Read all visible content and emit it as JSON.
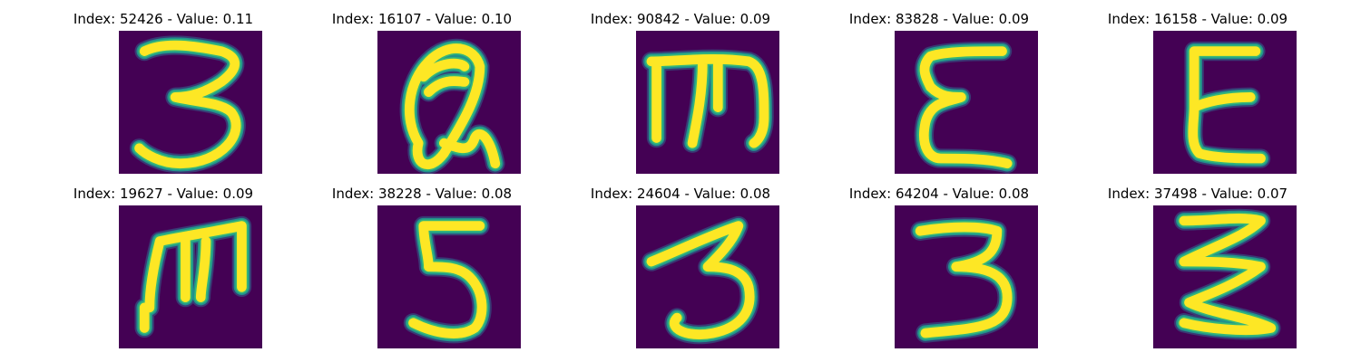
{
  "colors": {
    "background": "#440154",
    "stroke_inner": "#fde725",
    "stroke_halo_1": "#35b779",
    "stroke_halo_2": "#21918c",
    "stroke_halo_3": "#31688e"
  },
  "images": [
    {
      "title": "Index: 52426 - Value: 0.11",
      "glyph": "3"
    },
    {
      "title": "Index: 16107 - Value: 0.10",
      "glyph": "Q"
    },
    {
      "title": "Index: 90842 - Value: 0.09",
      "glyph": "m"
    },
    {
      "title": "Index: 83828 - Value: 0.09",
      "glyph": "E"
    },
    {
      "title": "Index: 16158 - Value: 0.09",
      "glyph": "E"
    },
    {
      "title": "Index: 19627 - Value: 0.09",
      "glyph": "m"
    },
    {
      "title": "Index: 38228 - Value: 0.08",
      "glyph": "5"
    },
    {
      "title": "Index: 24604 - Value: 0.08",
      "glyph": "3"
    },
    {
      "title": "Index: 64204 - Value: 0.08",
      "glyph": "3"
    },
    {
      "title": "Index: 37498 - Value: 0.07",
      "glyph": "Z"
    }
  ]
}
